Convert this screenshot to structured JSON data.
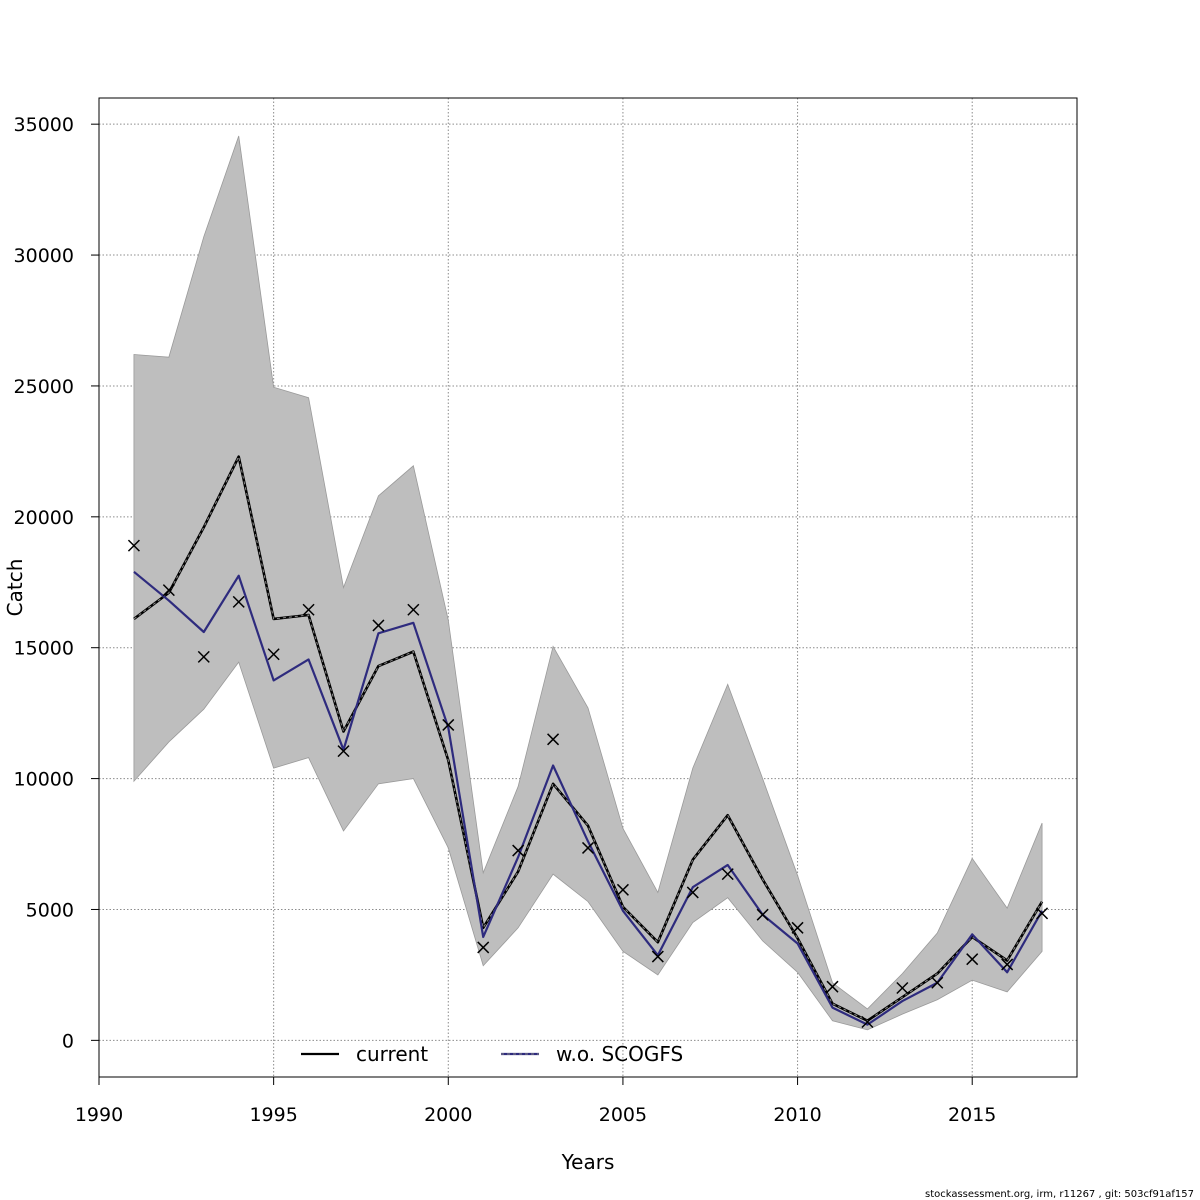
{
  "chart_data": {
    "type": "line",
    "xlabel": "Years",
    "ylabel": "Catch",
    "xlim": [
      1990,
      2018
    ],
    "ylim": [
      -1400,
      36000
    ],
    "x_ticks": [
      1990,
      1995,
      2000,
      2005,
      2010,
      2015
    ],
    "y_ticks": [
      0,
      5000,
      10000,
      15000,
      20000,
      25000,
      30000,
      35000
    ],
    "grid": true,
    "legend_position": "bottom",
    "x": [
      1991,
      1992,
      1993,
      1994,
      1995,
      1996,
      1997,
      1998,
      1999,
      2000,
      2001,
      2002,
      2003,
      2004,
      2005,
      2006,
      2007,
      2008,
      2009,
      2010,
      2011,
      2012,
      2013,
      2014,
      2015,
      2016,
      2017
    ],
    "series": [
      {
        "name": "current",
        "color": "#000000",
        "values": [
          16100,
          17100,
          19600,
          22300,
          16100,
          16250,
          11800,
          14300,
          14850,
          10700,
          4300,
          6450,
          9800,
          8200,
          5100,
          3750,
          6900,
          8600,
          6150,
          3900,
          1400,
          750,
          1650,
          2550,
          3950,
          3050,
          5300
        ]
      },
      {
        "name": "w.o. SCOGFS",
        "color": "#2e2b7e",
        "values": [
          17900,
          16800,
          15600,
          17750,
          13750,
          14550,
          11100,
          15550,
          15950,
          11950,
          3950,
          7000,
          10500,
          7600,
          4950,
          3250,
          5850,
          6700,
          4800,
          3700,
          1250,
          600,
          1500,
          2200,
          4050,
          2600,
          4950
        ]
      }
    ],
    "confidence_band": {
      "color": "#bebebe",
      "lower": [
        9900,
        11400,
        12650,
        14450,
        10400,
        10800,
        8000,
        9800,
        10000,
        7350,
        2850,
        4300,
        6350,
        5300,
        3400,
        2500,
        4500,
        5450,
        3800,
        2600,
        750,
        400,
        1000,
        1550,
        2300,
        1850,
        3400
      ],
      "upper": [
        26200,
        26100,
        30700,
        34550,
        24950,
        24550,
        17300,
        20800,
        21950,
        16050,
        6400,
        9700,
        15050,
        12700,
        8100,
        5650,
        10400,
        13600,
        10000,
        6300,
        2200,
        1200,
        2550,
        4100,
        6950,
        5050,
        8300
      ]
    },
    "observations": {
      "marker": "x",
      "values": [
        18900,
        17200,
        14650,
        16750,
        14750,
        16450,
        11050,
        15850,
        16450,
        12050,
        3550,
        7250,
        11500,
        7350,
        5750,
        3200,
        5650,
        6350,
        4800,
        4300,
        2050,
        700,
        2000,
        2200,
        3100,
        2900,
        4850
      ]
    }
  },
  "footer": "stockassessment.org, irm, r11267 , git: 503cf91af157"
}
